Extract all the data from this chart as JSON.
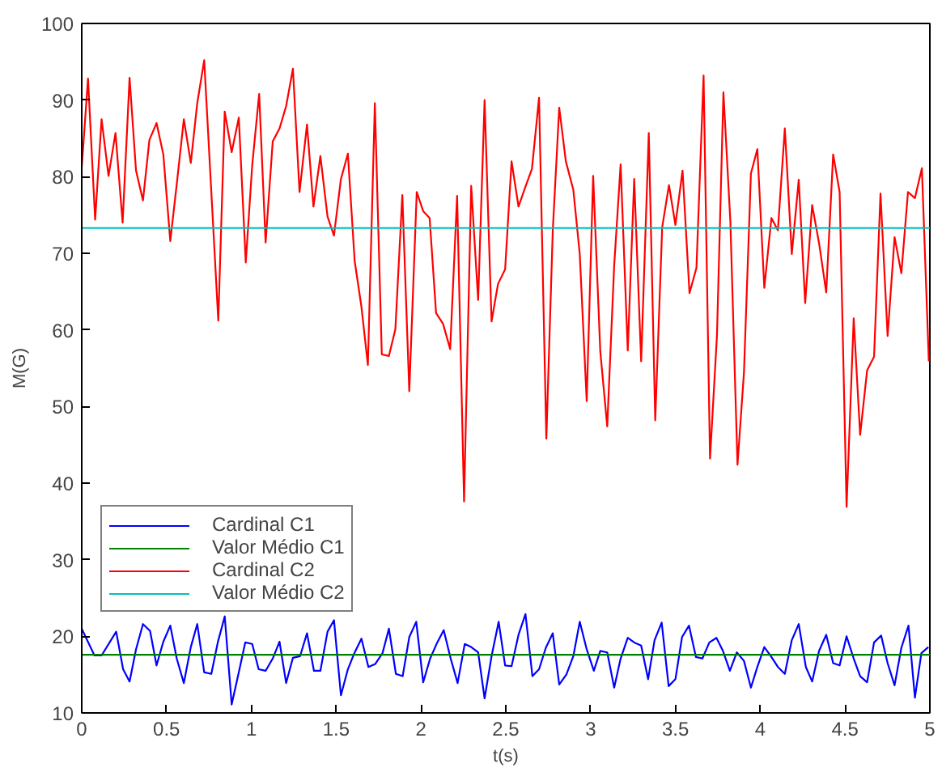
{
  "chart_data": {
    "type": "line",
    "xlabel": "t(s)",
    "ylabel": "M(G)",
    "xlim": [
      0,
      5
    ],
    "ylim": [
      10,
      100
    ],
    "xticks": [
      0,
      0.5,
      1,
      1.5,
      2,
      2.5,
      3,
      3.5,
      4,
      4.5,
      5
    ],
    "yticks": [
      10,
      20,
      30,
      40,
      50,
      60,
      70,
      80,
      90,
      100
    ],
    "legend": "left",
    "series": [
      {
        "name": "Cardinal C1",
        "color": "#0000ff",
        "x": [
          0,
          0.075,
          0.117,
          0.203,
          0.244,
          0.282,
          0.32,
          0.361,
          0.403,
          0.441,
          0.481,
          0.522,
          0.56,
          0.602,
          0.643,
          0.681,
          0.722,
          0.764,
          0.802,
          0.843,
          0.884,
          0.926,
          0.964,
          1.005,
          1.043,
          1.084,
          1.126,
          1.166,
          1.205,
          1.245,
          1.287,
          1.328,
          1.369,
          1.407,
          1.449,
          1.487,
          1.528,
          1.569,
          1.607,
          1.649,
          1.69,
          1.731,
          1.773,
          1.811,
          1.852,
          1.892,
          1.931,
          1.972,
          2.013,
          2.054,
          2.096,
          2.134,
          2.175,
          2.216,
          2.258,
          2.296,
          2.337,
          2.375,
          2.416,
          2.458,
          2.496,
          2.534,
          2.575,
          2.616,
          2.657,
          2.696,
          2.736,
          2.777,
          2.815,
          2.857,
          2.898,
          2.936,
          2.977,
          3.019,
          3.057,
          3.098,
          3.139,
          3.177,
          3.219,
          3.257,
          3.298,
          3.339,
          3.377,
          3.419,
          3.46,
          3.5,
          3.539,
          3.58,
          3.621,
          3.659,
          3.7,
          3.742,
          3.78,
          3.821,
          3.862,
          3.904,
          3.945,
          3.983,
          4.024,
          4.066,
          4.104,
          4.145,
          4.186,
          4.227,
          4.269,
          4.306,
          4.347,
          4.389,
          4.43,
          4.468,
          4.509,
          4.551,
          4.589,
          4.63,
          4.671,
          4.713,
          4.751,
          4.792,
          4.832,
          4.874,
          4.912,
          4.95,
          4.991
        ],
        "values": [
          21.0,
          17.5,
          17.5,
          20.6,
          15.7,
          14.1,
          18.3,
          21.6,
          20.7,
          16.2,
          19.3,
          21.4,
          17.1,
          13.9,
          18.6,
          21.6,
          15.3,
          15.1,
          19.2,
          22.6,
          11.1,
          15.3,
          19.2,
          19.0,
          15.7,
          15.5,
          17.1,
          19.3,
          13.9,
          17.2,
          17.4,
          20.4,
          15.5,
          15.5,
          20.6,
          22.1,
          12.3,
          15.7,
          17.8,
          19.7,
          16.0,
          16.4,
          17.8,
          21.0,
          15.1,
          14.8,
          19.9,
          21.9,
          14.0,
          17.1,
          19.2,
          20.8,
          17.1,
          13.9,
          19.0,
          18.6,
          17.9,
          11.9,
          17.4,
          21.9,
          16.2,
          16.1,
          20.2,
          22.9,
          14.8,
          15.7,
          18.5,
          20.4,
          13.7,
          15.0,
          17.4,
          21.9,
          18.3,
          15.5,
          18.1,
          17.9,
          13.3,
          17.1,
          19.8,
          19.2,
          18.8,
          14.4,
          19.5,
          21.8,
          13.5,
          14.4,
          19.9,
          21.4,
          17.3,
          17.1,
          19.2,
          19.8,
          18.1,
          15.5,
          17.9,
          16.8,
          13.3,
          16.0,
          18.6,
          17.3,
          16.0,
          15.1,
          19.5,
          21.6,
          16.0,
          14.1,
          18.1,
          20.2,
          16.5,
          16.2,
          20.0,
          17.1,
          14.8,
          14.0,
          19.2,
          20.1,
          16.5,
          13.6,
          18.5,
          21.4,
          12.0,
          17.8,
          18.6
        ]
      },
      {
        "name": "Valor Médio C1",
        "color": "#008000",
        "x": [
          0,
          5
        ],
        "values": [
          17.6,
          17.6
        ]
      },
      {
        "name": "Cardinal C2",
        "color": "#ff0000",
        "x": [
          0,
          0.037,
          0.079,
          0.117,
          0.158,
          0.199,
          0.241,
          0.282,
          0.32,
          0.361,
          0.399,
          0.441,
          0.481,
          0.522,
          0.56,
          0.602,
          0.643,
          0.681,
          0.722,
          0.805,
          0.843,
          0.884,
          0.926,
          0.967,
          1.005,
          1.046,
          1.084,
          1.126,
          1.166,
          1.205,
          1.245,
          1.284,
          1.328,
          1.366,
          1.407,
          1.449,
          1.487,
          1.528,
          1.569,
          1.609,
          1.649,
          1.687,
          1.728,
          1.769,
          1.811,
          1.849,
          1.89,
          1.931,
          1.975,
          2.013,
          2.051,
          2.089,
          2.13,
          2.172,
          2.213,
          2.254,
          2.296,
          2.337,
          2.375,
          2.416,
          2.454,
          2.496,
          2.534,
          2.575,
          2.616,
          2.654,
          2.696,
          2.739,
          2.777,
          2.815,
          2.854,
          2.898,
          2.936,
          2.977,
          3.015,
          3.057,
          3.098,
          3.139,
          3.177,
          3.219,
          3.257,
          3.298,
          3.343,
          3.381,
          3.422,
          3.462,
          3.5,
          3.542,
          3.583,
          3.624,
          3.666,
          3.704,
          3.745,
          3.783,
          3.824,
          3.866,
          3.904,
          3.945,
          3.983,
          4.024,
          4.066,
          4.104,
          4.145,
          4.186,
          4.227,
          4.265,
          4.306,
          4.347,
          4.389,
          4.43,
          4.468,
          4.509,
          4.551,
          4.589,
          4.63,
          4.671,
          4.709,
          4.751,
          4.792,
          4.832,
          4.871,
          4.912,
          4.953,
          4.994
        ],
        "values": [
          81.2,
          92.8,
          74.4,
          87.5,
          80.1,
          85.7,
          74.0,
          92.9,
          80.8,
          76.9,
          84.8,
          87.0,
          82.9,
          71.6,
          79.0,
          87.5,
          81.8,
          89.6,
          95.2,
          61.2,
          88.5,
          83.2,
          87.7,
          68.8,
          81.5,
          90.8,
          71.4,
          84.6,
          86.3,
          89.2,
          94.1,
          78.0,
          86.8,
          76.1,
          82.7,
          74.8,
          72.3,
          79.7,
          83.0,
          69.0,
          63.0,
          55.4,
          89.6,
          56.8,
          56.6,
          60.1,
          77.6,
          52.0,
          78.0,
          75.5,
          74.6,
          62.2,
          60.8,
          57.5,
          77.5,
          37.6,
          78.8,
          63.9,
          90.0,
          61.1,
          66.0,
          67.9,
          82.0,
          76.1,
          78.7,
          81.0,
          90.3,
          45.8,
          73.0,
          89.0,
          82.0,
          78.3,
          69.9,
          50.7,
          80.1,
          57.2,
          47.4,
          68.4,
          81.6,
          57.3,
          79.7,
          55.9,
          85.7,
          48.2,
          73.4,
          78.9,
          73.7,
          80.8,
          64.8,
          68.1,
          93.2,
          43.2,
          59.3,
          91.0,
          74.1,
          42.4,
          54.4,
          80.4,
          83.6,
          65.5,
          74.6,
          73.0,
          86.3,
          69.9,
          79.6,
          63.5,
          76.3,
          71.3,
          64.9,
          82.9,
          78.0,
          36.9,
          61.5,
          46.3,
          54.7,
          56.5,
          77.8,
          59.2,
          72.1,
          67.4,
          78.0,
          77.2,
          81.1,
          55.9
        ]
      },
      {
        "name": "Valor Médio C2",
        "color": "#00bfbf",
        "x": [
          0,
          5
        ],
        "values": [
          73.3,
          73.3
        ]
      }
    ]
  }
}
